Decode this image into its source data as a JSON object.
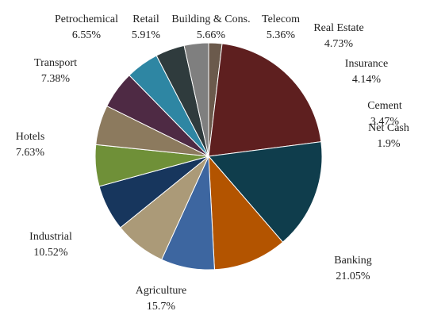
{
  "chart_data": {
    "type": "pie",
    "slices": [
      {
        "label": "Net Cash",
        "value": 1.9,
        "display": "1.9%",
        "color": "#6b5a4c"
      },
      {
        "label": "Banking",
        "value": 21.05,
        "display": "21.05%",
        "color": "#5e1f1f"
      },
      {
        "label": "Agriculture",
        "value": 15.7,
        "display": "15.7%",
        "color": "#0f3d4c"
      },
      {
        "label": "Industrial",
        "value": 10.52,
        "display": "10.52%",
        "color": "#b35400"
      },
      {
        "label": "Hotels",
        "value": 7.63,
        "display": "7.63%",
        "color": "#3d66a0"
      },
      {
        "label": "Transport",
        "value": 7.38,
        "display": "7.38%",
        "color": "#ab9a78"
      },
      {
        "label": "Petrochemical",
        "value": 6.55,
        "display": "6.55%",
        "color": "#17365d"
      },
      {
        "label": "Retail",
        "value": 5.91,
        "display": "5.91%",
        "color": "#6f9038"
      },
      {
        "label": "Building & Cons.",
        "value": 5.66,
        "display": "5.66%",
        "color": "#8c7a5e"
      },
      {
        "label": "Telecom",
        "value": 5.36,
        "display": "5.36%",
        "color": "#4e2a44"
      },
      {
        "label": "Real Estate",
        "value": 4.73,
        "display": "4.73%",
        "color": "#2e86a3"
      },
      {
        "label": "Insurance",
        "value": 4.14,
        "display": "4.14%",
        "color": "#2f3b3d"
      },
      {
        "label": "Cement",
        "value": 3.47,
        "display": "3.47%",
        "color": "#7f7f7f"
      }
    ]
  }
}
